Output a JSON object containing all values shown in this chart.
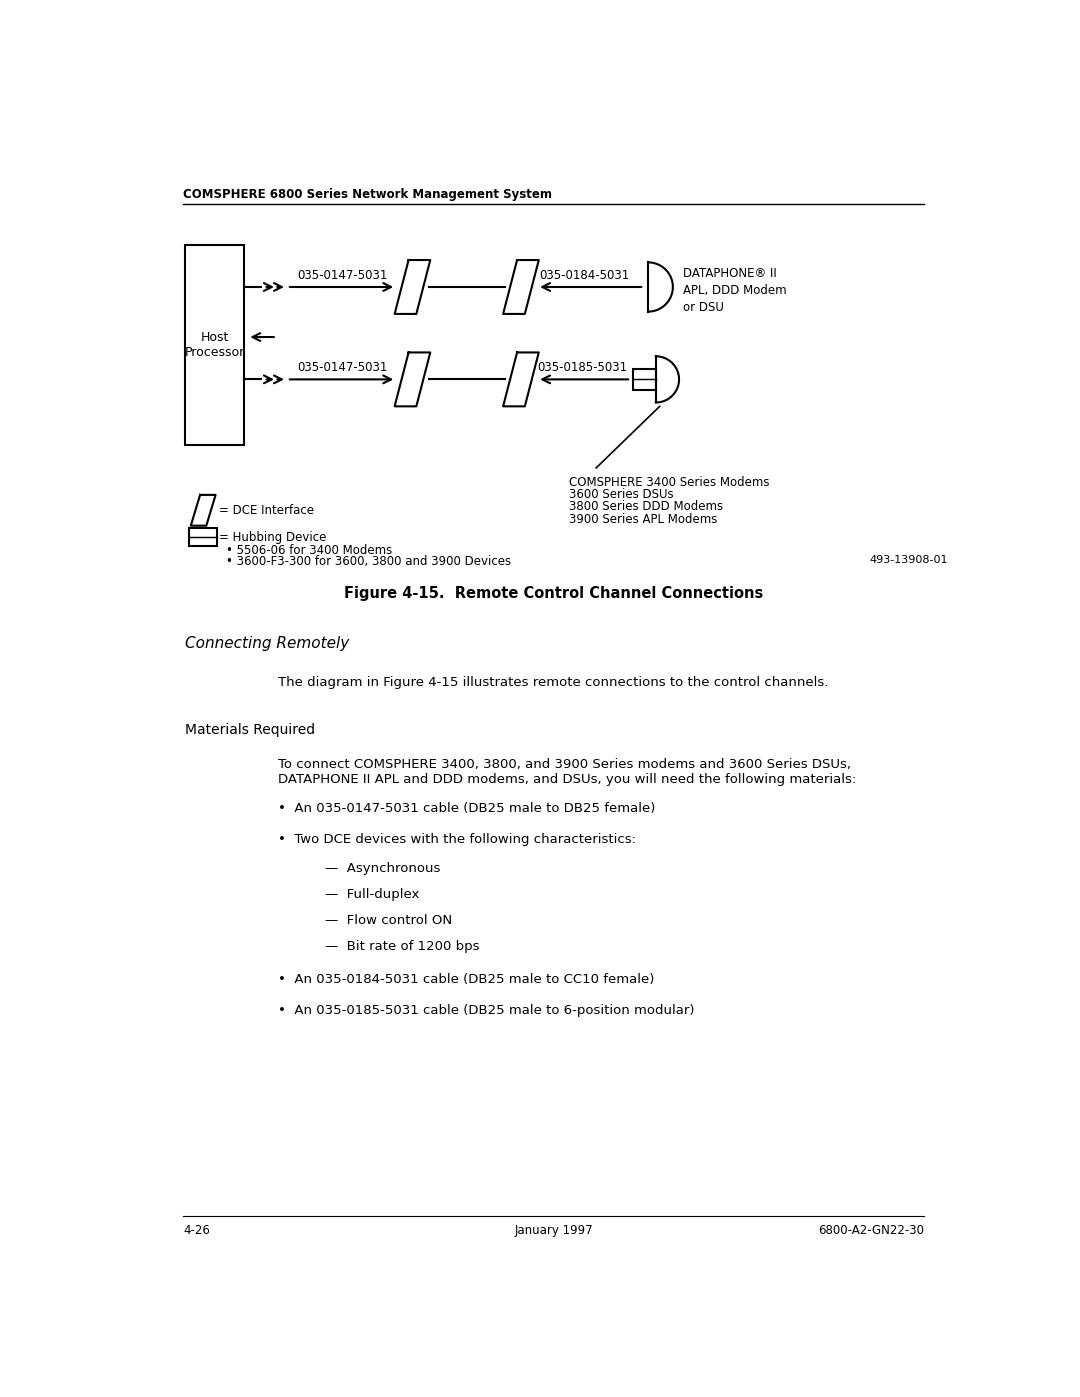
{
  "header_text": "COMSPHERE 6800 Series Network Management System",
  "bg_color": "#ffffff",
  "fig_width": 10.8,
  "fig_height": 13.97,
  "footer_left": "4-26",
  "footer_center": "January 1997",
  "footer_right": "6800-A2-GN22-30",
  "figure_caption": "Figure 4-15.  Remote Control Channel Connections",
  "section_title": "Connecting Remotely",
  "materials_header": "Materials Required",
  "intro_text": "The diagram in Figure 4-15 illustrates remote connections to the control channels.",
  "materials_intro_1": "To connect COMSPHERE 3400, 3800, and 3900 Series modems and 3600 Series DSUs,",
  "materials_intro_2": "DATAPHONE II APL and DDD modems, and DSUs, you will need the following materials:",
  "bullet1": "An 035-0147-5031 cable (DB25 male to DB25 female)",
  "bullet2": "Two DCE devices with the following characteristics:",
  "bullet3": "An 035-0184-5031 cable (DB25 male to CC10 female)",
  "bullet4": "An 035-0185-5031 cable (DB25 male to 6-position modular)",
  "sub1": "Asynchronous",
  "sub2": "Full-duplex",
  "sub3": "Flow control ON",
  "sub4": "Bit rate of 1200 bps",
  "label_top_left": "035-0147-5031",
  "label_top_right": "035-0184-5031",
  "label_bot_left": "035-0147-5031",
  "label_bot_right": "035-0185-5031",
  "host_label": "Host\nProcessor",
  "dataphone_label": "DATAPHONE® II\nAPL, DDD Modem\nor DSU",
  "comsphere_label_1": "COMSPHERE 3400 Series Modems",
  "comsphere_label_2": "3600 Series DSUs",
  "comsphere_label_3": "3800 Series DDD Modems",
  "comsphere_label_4": "3900 Series APL Modems",
  "dce_legend": "= DCE Interface",
  "hub_legend": "= Hubbing Device",
  "hub_bullet1": "• 5506-06 for 3400 Modems",
  "hub_bullet2": "• 3600-F3-300 for 3600, 3800 and 3900 Devices",
  "diagram_ref": "493-13908-01"
}
